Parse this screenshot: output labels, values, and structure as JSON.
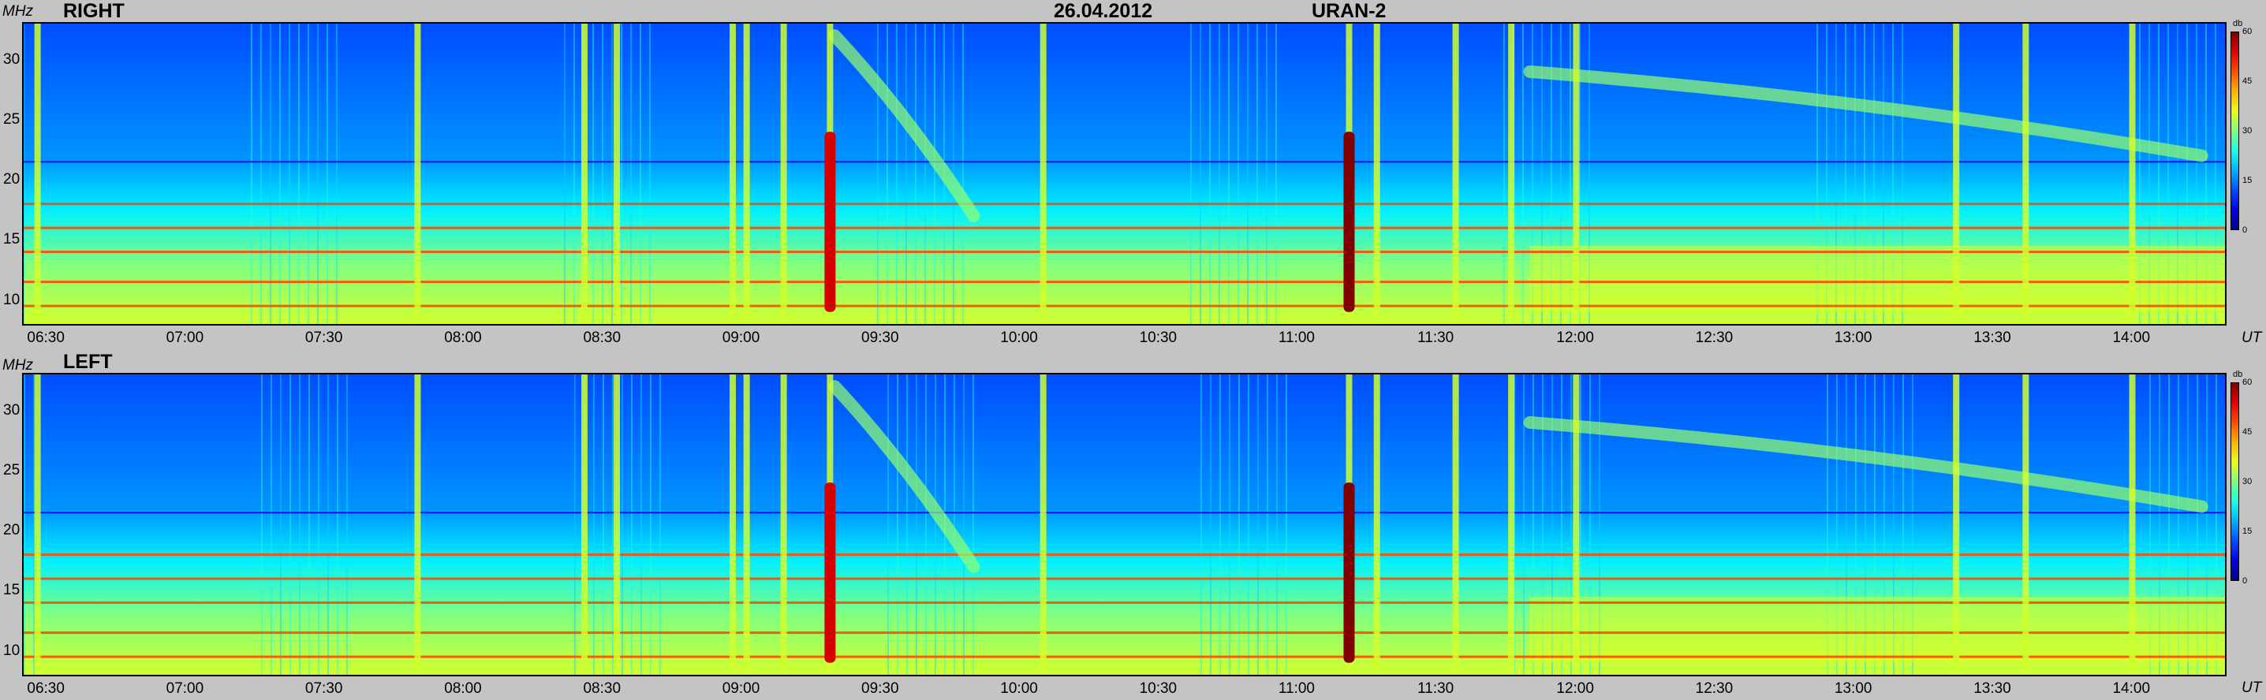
{
  "header": {
    "date": "26.04.2012",
    "instrument": "URAN-2"
  },
  "colorbar": {
    "unit": "db",
    "ticks": [
      "60",
      "45",
      "30",
      "15",
      "0"
    ],
    "range": [
      0,
      60
    ]
  },
  "chart_data": {
    "type": "heatmap",
    "xlabel": "UT",
    "ylabel": "MHz",
    "x_range": [
      "06:25",
      "14:20"
    ],
    "y_range": [
      8,
      33
    ],
    "x_ticks": [
      "06:30",
      "07:00",
      "07:30",
      "08:00",
      "08:30",
      "09:00",
      "09:30",
      "10:00",
      "10:30",
      "11:00",
      "11:30",
      "12:00",
      "12:30",
      "13:00",
      "13:30",
      "14:00"
    ],
    "y_ticks": [
      "30",
      "25",
      "20",
      "15",
      "10"
    ],
    "panels": [
      {
        "name": "RIGHT",
        "vertical_bursts_ut": [
          "06:28",
          "07:50",
          "08:26",
          "08:33",
          "08:58",
          "09:01",
          "09:09",
          "09:19",
          "10:05",
          "11:11",
          "11:17",
          "11:34",
          "11:46",
          "12:00",
          "13:22",
          "13:37",
          "14:00"
        ],
        "strongest_bursts": [
          {
            "time": "09:19",
            "level_db": 55
          },
          {
            "time": "11:11",
            "level_db": 60
          }
        ],
        "drifting_features": [
          {
            "start": "09:20",
            "end": "09:50",
            "freq_mhz": [
              32,
              17
            ]
          },
          {
            "start": "11:50",
            "end": "14:15",
            "freq_mhz": [
              29,
              22
            ]
          }
        ],
        "horizontal_bands_mhz": [
          21.5,
          18,
          16,
          14,
          11.5,
          9.5
        ]
      },
      {
        "name": "LEFT",
        "vertical_bursts_ut": [
          "06:28",
          "07:50",
          "08:26",
          "08:33",
          "08:58",
          "09:01",
          "09:09",
          "09:19",
          "10:05",
          "11:11",
          "11:17",
          "11:34",
          "11:46",
          "12:00",
          "13:22",
          "13:37",
          "14:00"
        ],
        "strongest_bursts": [
          {
            "time": "09:19",
            "level_db": 55
          },
          {
            "time": "11:11",
            "level_db": 60
          }
        ],
        "drifting_features": [
          {
            "start": "09:20",
            "end": "09:50",
            "freq_mhz": [
              32,
              17
            ]
          },
          {
            "start": "11:50",
            "end": "14:15",
            "freq_mhz": [
              29,
              22
            ]
          }
        ],
        "horizontal_bands_mhz": [
          21.5,
          18,
          16,
          14,
          11.5,
          9.5
        ]
      }
    ]
  }
}
